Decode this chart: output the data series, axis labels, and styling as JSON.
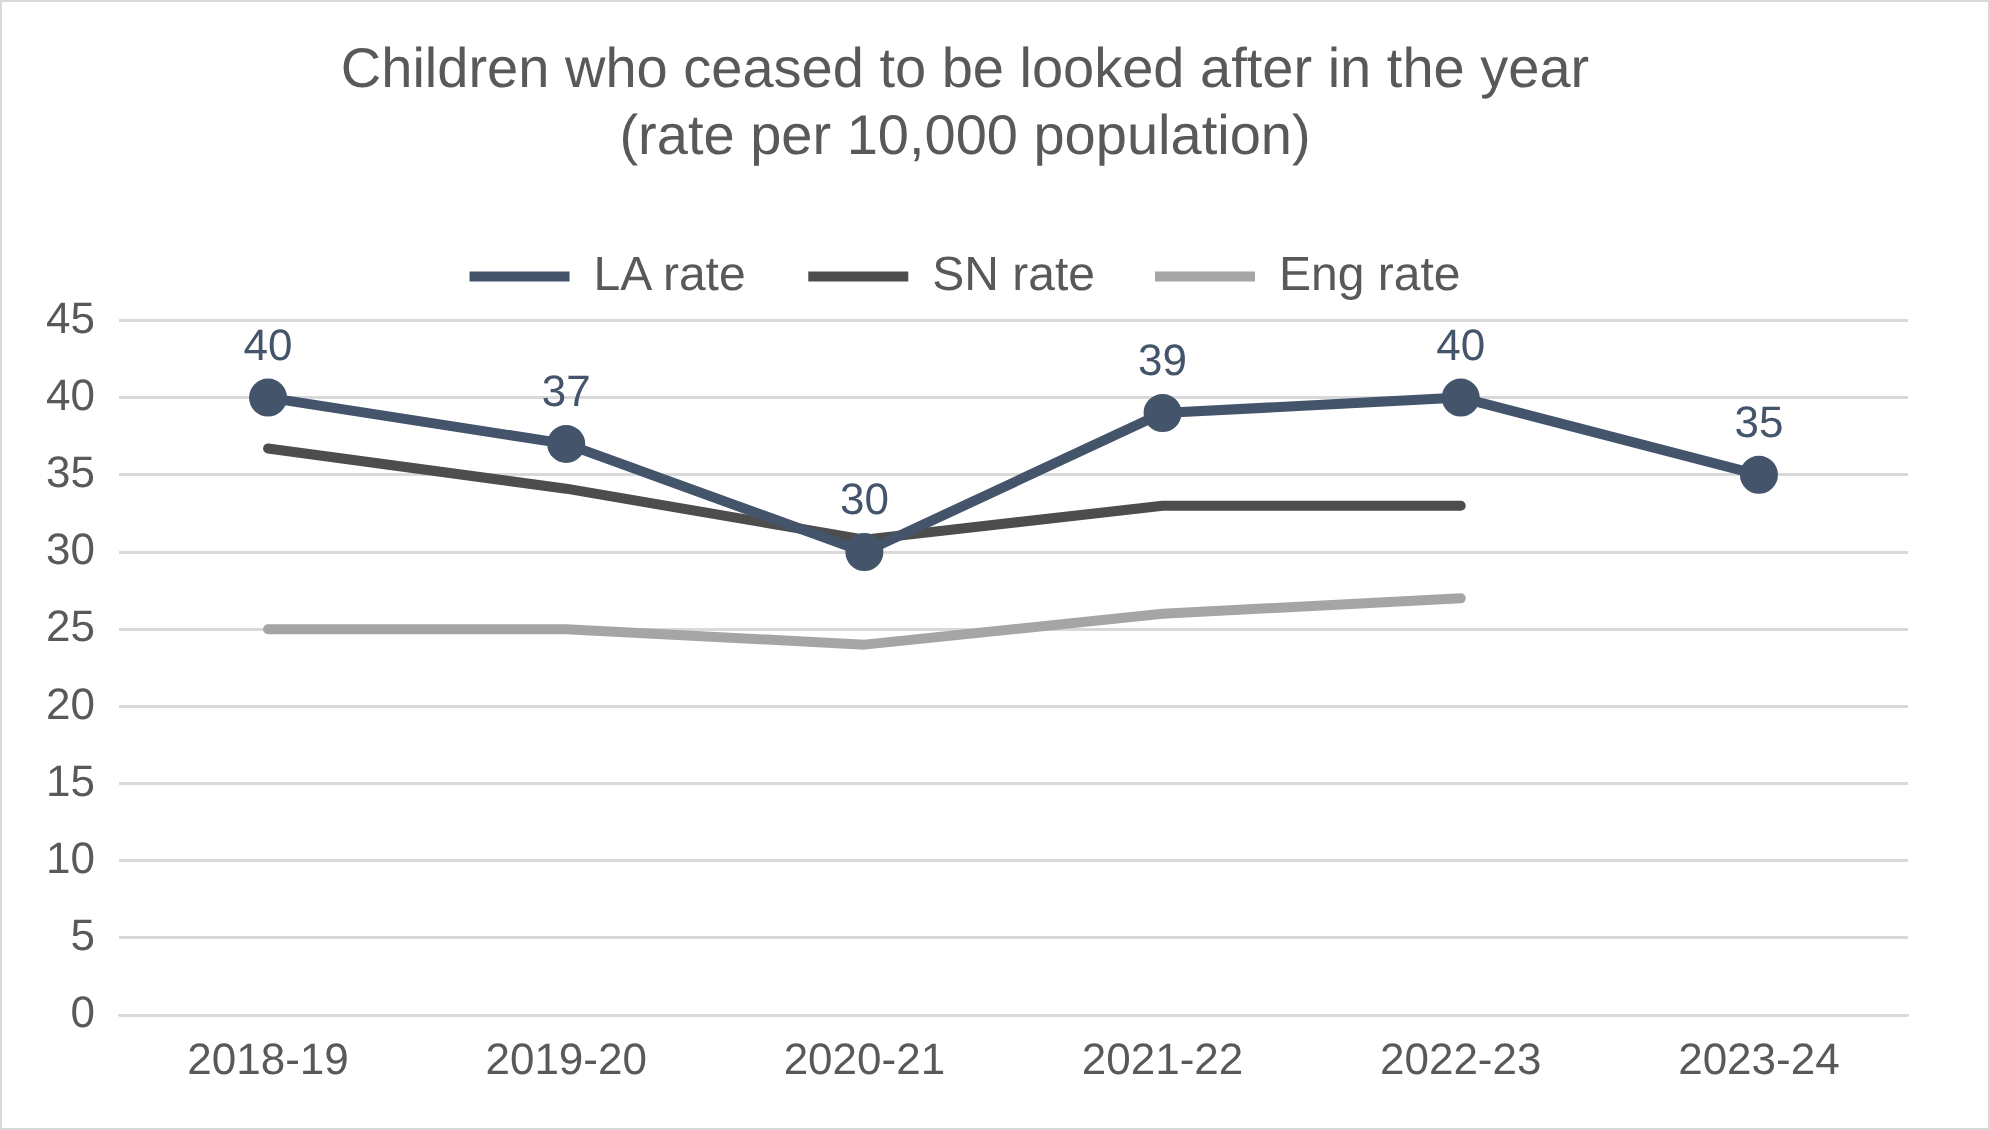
{
  "chart_data": {
    "type": "line",
    "title": [
      "Children who ceased to be looked after in the year",
      "(rate per 10,000 population)"
    ],
    "categories": [
      "2018-19",
      "2019-20",
      "2020-21",
      "2021-22",
      "2022-23",
      "2023-24"
    ],
    "series": [
      {
        "name": "LA rate",
        "color": "#44546a",
        "values": [
          40,
          37,
          30,
          39,
          40,
          35
        ],
        "marker": "circle",
        "data_labels": true
      },
      {
        "name": "SN rate",
        "color": "#4d4d4d",
        "values": [
          36.7,
          34.1,
          30.8,
          33,
          33,
          null
        ],
        "marker": "none"
      },
      {
        "name": "Eng rate",
        "color": "#a5a5a5",
        "values": [
          25,
          25,
          24,
          26,
          27,
          null
        ],
        "marker": "none"
      }
    ],
    "ylim": [
      0,
      45
    ],
    "yticks": [
      0,
      5,
      10,
      15,
      20,
      25,
      30,
      35,
      40,
      45
    ],
    "grid": "y",
    "legend": "top"
  }
}
